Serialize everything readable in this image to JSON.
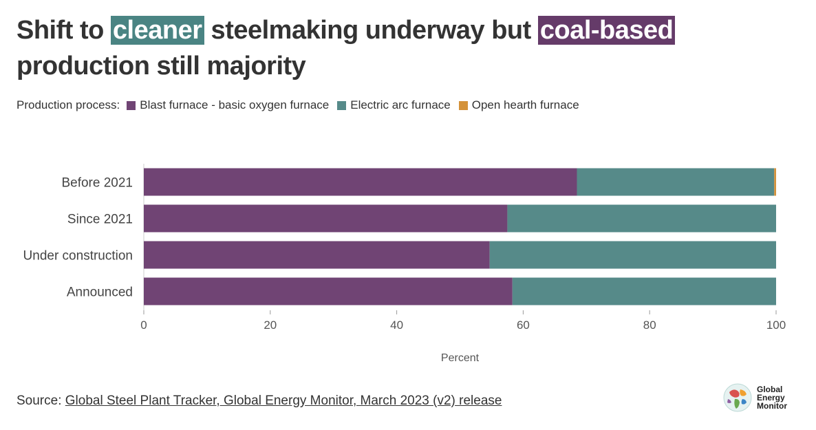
{
  "title": {
    "part1": "Shift to ",
    "highlight1": "cleaner",
    "part2": " steelmaking underway but ",
    "highlight2": "coal-based",
    "part3": " production still majority"
  },
  "legend": {
    "title": "Production process:",
    "items": [
      {
        "label": "Blast furnace - basic oxygen furnace",
        "color": "#704474"
      },
      {
        "label": "Electric arc furnace",
        "color": "#568a89"
      },
      {
        "label": "Open hearth furnace",
        "color": "#d4923a"
      }
    ]
  },
  "chart_data": {
    "type": "bar",
    "orientation": "horizontal",
    "stacked": true,
    "categories": [
      "Before 2021",
      "Since 2021",
      "Under construction",
      "Announced"
    ],
    "series": [
      {
        "name": "Blast furnace - basic oxygen furnace",
        "color": "#704474",
        "values": [
          68.5,
          57.5,
          54.7,
          58.3
        ]
      },
      {
        "name": "Electric arc furnace",
        "color": "#568a89",
        "values": [
          31.2,
          42.5,
          45.3,
          41.7
        ]
      },
      {
        "name": "Open hearth furnace",
        "color": "#d4923a",
        "values": [
          0.3,
          0,
          0,
          0
        ]
      }
    ],
    "xlim": [
      0,
      100
    ],
    "xticks": [
      0,
      20,
      40,
      60,
      80,
      100
    ],
    "xlabel": "Percent",
    "ylabel": ""
  },
  "source": {
    "prefix": "Source: ",
    "link_text": "Global Steel Plant Tracker, Global Energy Monitor, March 2023 (v2) release"
  },
  "logo": {
    "line1": "Global",
    "line2": "Energy",
    "line3": "Monitor"
  }
}
